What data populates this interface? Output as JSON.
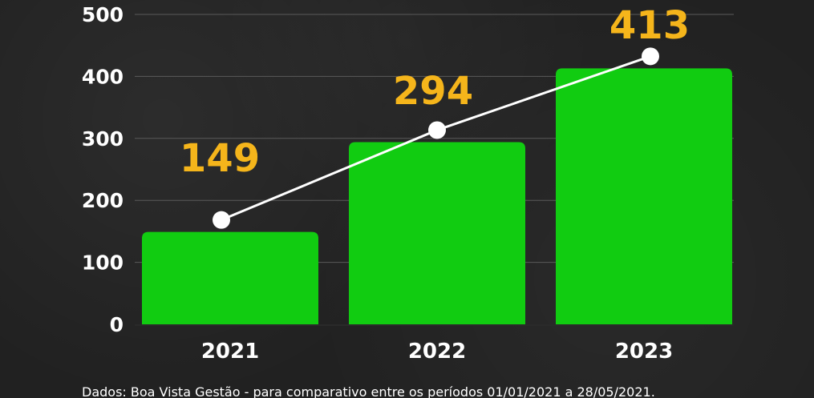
{
  "chart_data": {
    "type": "bar",
    "categories": [
      "2021",
      "2022",
      "2023"
    ],
    "values": [
      149,
      294,
      413
    ],
    "value_labels": [
      "149",
      "294",
      "413"
    ],
    "line_overlay": true,
    "ylim": [
      0,
      500
    ],
    "yticks": [
      "0",
      "100",
      "200",
      "300",
      "400",
      "500"
    ],
    "title": "",
    "xlabel": "",
    "ylabel": "",
    "grid": true,
    "colors": {
      "bar": "#11cc11",
      "label": "#f5b51b",
      "line": "#ffffff",
      "text": "#ffffff",
      "grid": "#5a5a5a"
    }
  },
  "footer": {
    "source": "Dados: Boa Vista Gestão - para comparativo entre os períodos 01/01/2021 a 28/05/2021."
  }
}
